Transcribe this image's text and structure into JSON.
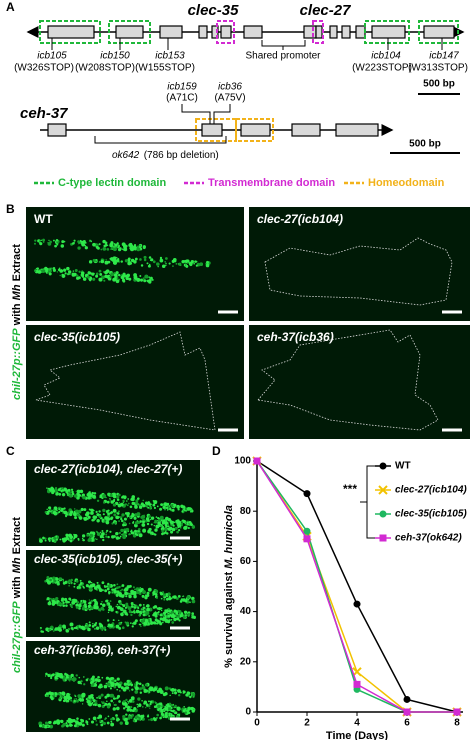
{
  "panel_a": {
    "label": "A",
    "genes": {
      "clec_35": "clec-35",
      "clec_27": "clec-27",
      "ceh_37": "ceh-37"
    },
    "alleles": [
      {
        "name": "icb105",
        "change": "(W326STOP)"
      },
      {
        "name": "icb150",
        "change": "(W208STOP)"
      },
      {
        "name": "icb153",
        "change": "(W155STOP)"
      },
      {
        "name": "icb104",
        "change": "(W223STOP)"
      },
      {
        "name": "icb147",
        "change": "(W313STOP)"
      }
    ],
    "shared_promoter": "Shared promoter",
    "ceh_alleles": [
      {
        "name": "icb159",
        "change": "(A71C)"
      },
      {
        "name": "icb36",
        "change": "(A75V)"
      }
    ],
    "deletion": {
      "name": "ok642",
      "change": "(786 bp deletion)"
    },
    "scale_bars": [
      "500 bp",
      "500 bp"
    ],
    "legend": [
      "C-type lectin domain",
      "Transmembrane domain",
      "Homeodomain"
    ]
  },
  "panel_b": {
    "label": "B",
    "y_label": {
      "reporter": "chil-27p::GFP",
      "with": "with",
      "source": "Mh",
      "extract": "Extract"
    },
    "images": [
      "WT",
      "clec-27(icb104)",
      "clec-35(icb105)",
      "ceh-37(icb36)"
    ]
  },
  "panel_c": {
    "label": "C",
    "y_label": {
      "reporter": "chil-27p::GFP",
      "with": "with",
      "source": "Mh",
      "extract": "Extract"
    },
    "images": [
      "clec-27(icb104), clec-27(+)",
      "clec-35(icb105), clec-35(+)",
      "ceh-37(icb36), ceh-37(+)"
    ]
  },
  "chart_data": {
    "type": "line",
    "panel_label": "D",
    "x_label": "Time (Days)",
    "y_label": "% survival against",
    "y_label_species": "M. humicola",
    "x": [
      0,
      2,
      4,
      6,
      8
    ],
    "xlim": [
      0,
      8
    ],
    "xticks": [
      0,
      2,
      4,
      6,
      8
    ],
    "ylim": [
      0,
      100
    ],
    "yticks": [
      0,
      20,
      40,
      60,
      80,
      100
    ],
    "significance": "***",
    "series": [
      {
        "name": "WT",
        "color": "#000000",
        "marker": "circle",
        "values": [
          100,
          87,
          43,
          5,
          0
        ]
      },
      {
        "name": "clec-27(icb104)",
        "color": "#f2c200",
        "marker": "x",
        "values": [
          100,
          70,
          16,
          0,
          0
        ]
      },
      {
        "name": "clec-35(icb105)",
        "color": "#1fb860",
        "marker": "circle",
        "values": [
          100,
          72,
          9,
          0,
          0
        ]
      },
      {
        "name": "ceh-37(ok642)",
        "color": "#d22ad2",
        "marker": "square",
        "values": [
          100,
          69,
          11,
          0,
          0
        ]
      }
    ]
  }
}
